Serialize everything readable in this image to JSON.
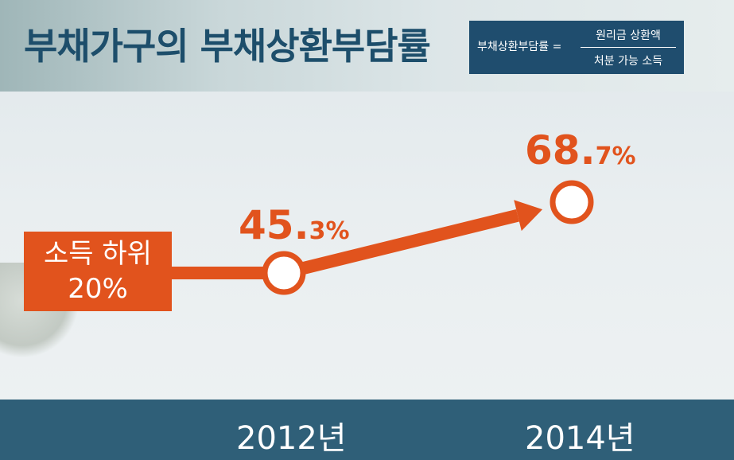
{
  "title": "부채가구의 부채상환부담률",
  "formula": {
    "lhs": "부채상환부담률 =",
    "numerator": "원리금 상환액",
    "denominator": "처분 가능 소득"
  },
  "colors": {
    "accent": "#e1531d",
    "navy": "#1f4d6e",
    "band": "#2f5f78"
  },
  "chart_data": {
    "type": "line",
    "series": [
      {
        "name": "소득 하위 20%",
        "points": [
          {
            "x": "2012년",
            "y": 45.3
          },
          {
            "x": "2014년",
            "y": 68.7
          }
        ]
      }
    ],
    "categories": [
      "2012년",
      "2014년"
    ],
    "values": [
      45.3,
      68.7
    ],
    "labels": [
      {
        "whole": "45.",
        "decimal": "3%"
      },
      {
        "whole": "68.",
        "decimal": "7%"
      }
    ],
    "group_label_line1": "소득 하위",
    "group_label_line2": "20%",
    "unit": "%"
  }
}
